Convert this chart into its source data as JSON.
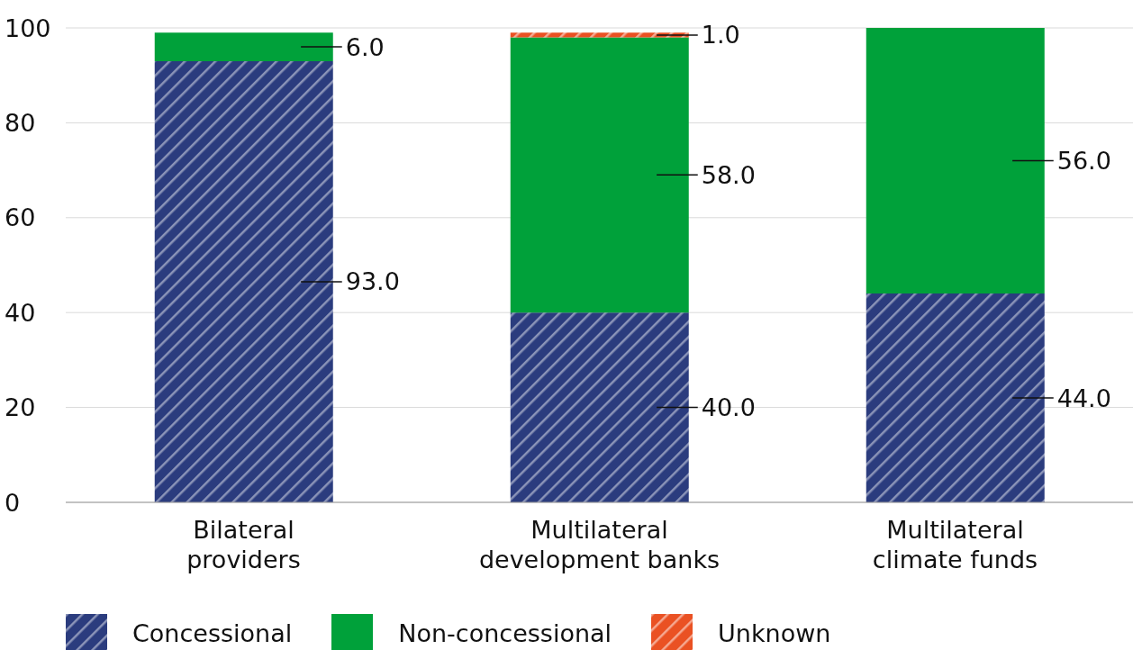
{
  "chart_data": {
    "type": "bar",
    "stacked": true,
    "categories": [
      "Bilateral providers",
      "Multilateral development banks",
      "Multilateral climate funds"
    ],
    "series": [
      {
        "name": "Concessional",
        "color": "#2b3c7e",
        "values": [
          93,
          40,
          44
        ],
        "value_labels": [
          "93.0",
          "40.0",
          "44.0"
        ]
      },
      {
        "name": "Non-concessional",
        "color": "#00a13a",
        "values": [
          6,
          58,
          56
        ],
        "value_labels": [
          "6.0",
          "58.0",
          "56.0"
        ]
      },
      {
        "name": "Unknown",
        "color": "#ea5123",
        "values": [
          null,
          1,
          null
        ],
        "value_labels": [
          null,
          "1.0",
          null
        ]
      }
    ],
    "ylim": [
      0,
      100
    ],
    "yticks": [
      0,
      20,
      40,
      60,
      80,
      100
    ],
    "grid": "y",
    "legend": "bottom"
  }
}
